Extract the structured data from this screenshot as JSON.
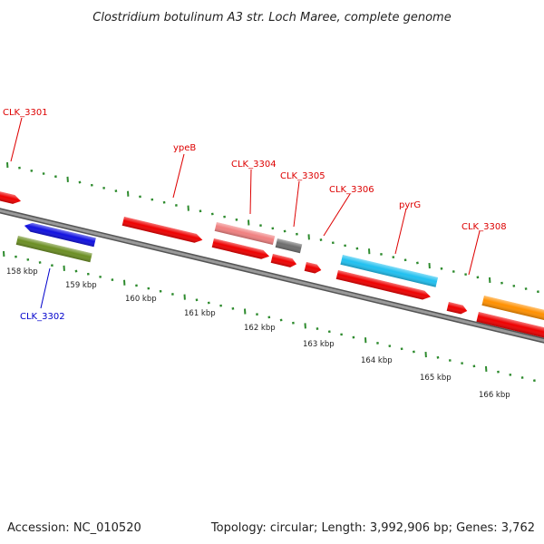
{
  "title": "Clostridium botulinum A3 str. Loch Maree, complete genome",
  "footer": {
    "accession": "Accession: NC_010520",
    "summary": "Topology: circular; Length: 3,992,906 bp; Genes: 3,762"
  },
  "scale_ticks": [
    "158 kbp",
    "159 kbp",
    "160 kbp",
    "161 kbp",
    "162 kbp",
    "163 kbp",
    "164 kbp",
    "165 kbp",
    "166 kbp"
  ],
  "gene_labels": [
    {
      "name": "CLK_3301",
      "color": "#dd0000"
    },
    {
      "name": "CLK_3302",
      "color": "#0000cc"
    },
    {
      "name": "ypeB",
      "color": "#dd0000"
    },
    {
      "name": "CLK_3304",
      "color": "#dd0000"
    },
    {
      "name": "CLK_3305",
      "color": "#dd0000"
    },
    {
      "name": "CLK_3306",
      "color": "#dd0000"
    },
    {
      "name": "pyrG",
      "color": "#dd0000"
    },
    {
      "name": "CLK_3308",
      "color": "#dd0000"
    }
  ],
  "colors": {
    "backbone": "#8c8c8c",
    "tick": "#2e8b2e",
    "red_gene": "#ee0000",
    "blue_gene": "#1010e0",
    "olive_gene": "#6b8e23",
    "pink_gene": "#f08080",
    "gray_gene": "#6e6e6e",
    "cyan_gene": "#20c0f0",
    "orange_gene": "#ff9000"
  }
}
